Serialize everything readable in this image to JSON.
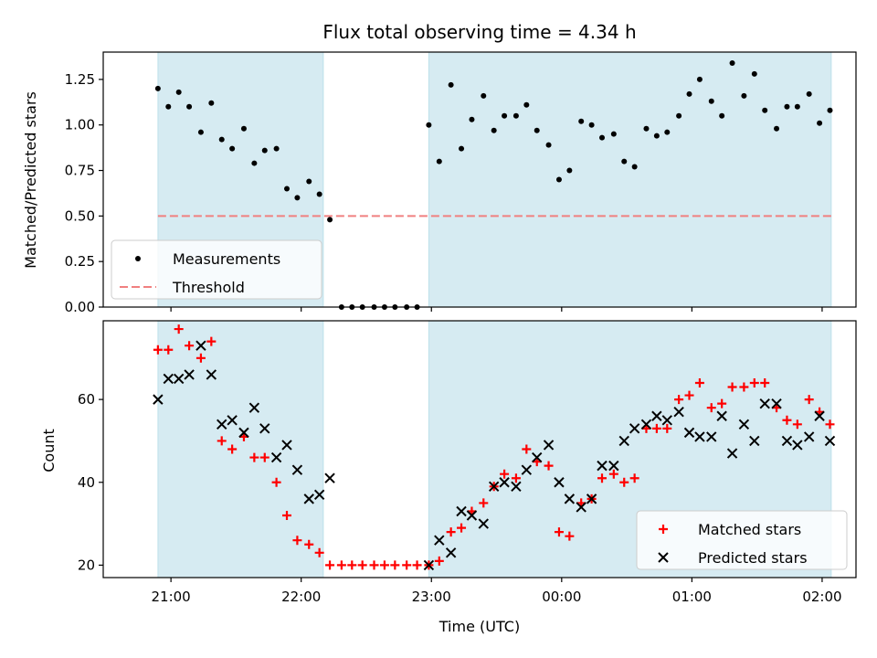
{
  "chart_data": {
    "title": "Flux total observing time = 4.34 h",
    "xlabel": "Time (UTC)",
    "x_ticks": [
      "21:00",
      "22:00",
      "23:00",
      "00:00",
      "01:00",
      "02:00"
    ],
    "x_tick_hours": [
      21,
      22,
      23,
      24,
      25,
      26
    ],
    "xlim_hours": [
      20.48,
      26.26
    ],
    "shaded_intervals_hours": [
      [
        20.9,
        22.17
      ],
      [
        22.98,
        26.07
      ]
    ],
    "colors": {
      "shade": "#add8e6",
      "measurements": "#000000",
      "threshold": "#f08080",
      "matched": "#ff0000",
      "predicted": "#000000"
    },
    "panels": [
      {
        "type": "scatter",
        "ylabel": "Matched/Predicted stars",
        "ylim": [
          0,
          1.4
        ],
        "y_ticks": [
          "0.00",
          "0.25",
          "0.50",
          "0.75",
          "1.00",
          "1.25"
        ],
        "y_tick_values": [
          0,
          0.25,
          0.5,
          0.75,
          1.0,
          1.25
        ],
        "legend_position": "lower-left",
        "threshold": {
          "name": "Threshold",
          "value": 0.5,
          "x_range_hours": [
            20.9,
            26.07
          ]
        },
        "series": [
          {
            "name": "Measurements",
            "marker": "dot",
            "points": [
              [
                20.9,
                1.2
              ],
              [
                20.98,
                1.1
              ],
              [
                21.06,
                1.18
              ],
              [
                21.14,
                1.1
              ],
              [
                21.23,
                0.96
              ],
              [
                21.31,
                1.12
              ],
              [
                21.39,
                0.92
              ],
              [
                21.47,
                0.87
              ],
              [
                21.56,
                0.98
              ],
              [
                21.64,
                0.79
              ],
              [
                21.72,
                0.86
              ],
              [
                21.81,
                0.87
              ],
              [
                21.89,
                0.65
              ],
              [
                21.97,
                0.6
              ],
              [
                22.06,
                0.69
              ],
              [
                22.14,
                0.62
              ],
              [
                22.22,
                0.48
              ],
              [
                22.31,
                0.0
              ],
              [
                22.39,
                0.0
              ],
              [
                22.47,
                0.0
              ],
              [
                22.56,
                0.0
              ],
              [
                22.64,
                0.0
              ],
              [
                22.72,
                0.0
              ],
              [
                22.81,
                0.0
              ],
              [
                22.89,
                0.0
              ],
              [
                22.98,
                1.0
              ],
              [
                23.06,
                0.8
              ],
              [
                23.15,
                1.22
              ],
              [
                23.23,
                0.87
              ],
              [
                23.31,
                1.03
              ],
              [
                23.4,
                1.16
              ],
              [
                23.48,
                0.97
              ],
              [
                23.56,
                1.05
              ],
              [
                23.65,
                1.05
              ],
              [
                23.73,
                1.11
              ],
              [
                23.81,
                0.97
              ],
              [
                23.9,
                0.89
              ],
              [
                23.98,
                0.7
              ],
              [
                24.06,
                0.75
              ],
              [
                24.15,
                1.02
              ],
              [
                24.23,
                1.0
              ],
              [
                24.31,
                0.93
              ],
              [
                24.4,
                0.95
              ],
              [
                24.48,
                0.8
              ],
              [
                24.56,
                0.77
              ],
              [
                24.65,
                0.98
              ],
              [
                24.73,
                0.94
              ],
              [
                24.81,
                0.96
              ],
              [
                24.9,
                1.05
              ],
              [
                24.98,
                1.17
              ],
              [
                25.06,
                1.25
              ],
              [
                25.15,
                1.13
              ],
              [
                25.23,
                1.05
              ],
              [
                25.31,
                1.34
              ],
              [
                25.4,
                1.16
              ],
              [
                25.48,
                1.28
              ],
              [
                25.56,
                1.08
              ],
              [
                25.65,
                0.98
              ],
              [
                25.73,
                1.1
              ],
              [
                25.81,
                1.1
              ],
              [
                25.9,
                1.17
              ],
              [
                25.98,
                1.01
              ],
              [
                26.06,
                1.08
              ]
            ]
          }
        ]
      },
      {
        "type": "scatter",
        "ylabel": "Count",
        "ylim": [
          17,
          79
        ],
        "y_ticks": [
          "20",
          "40",
          "60"
        ],
        "y_tick_values": [
          20,
          40,
          60
        ],
        "legend_position": "lower-right",
        "series": [
          {
            "name": "Matched stars",
            "marker": "plus",
            "points": [
              [
                20.9,
                72
              ],
              [
                20.98,
                72
              ],
              [
                21.06,
                77
              ],
              [
                21.14,
                73
              ],
              [
                21.23,
                70
              ],
              [
                21.31,
                74
              ],
              [
                21.39,
                50
              ],
              [
                21.47,
                48
              ],
              [
                21.56,
                51
              ],
              [
                21.64,
                46
              ],
              [
                21.72,
                46
              ],
              [
                21.81,
                40
              ],
              [
                21.89,
                32
              ],
              [
                21.97,
                26
              ],
              [
                22.06,
                25
              ],
              [
                22.14,
                23
              ],
              [
                22.22,
                20
              ],
              [
                22.31,
                20
              ],
              [
                22.39,
                20
              ],
              [
                22.47,
                20
              ],
              [
                22.56,
                20
              ],
              [
                22.64,
                20
              ],
              [
                22.72,
                20
              ],
              [
                22.81,
                20
              ],
              [
                22.89,
                20
              ],
              [
                22.98,
                20
              ],
              [
                23.06,
                21
              ],
              [
                23.15,
                28
              ],
              [
                23.23,
                29
              ],
              [
                23.31,
                33
              ],
              [
                23.4,
                35
              ],
              [
                23.48,
                39
              ],
              [
                23.56,
                42
              ],
              [
                23.65,
                41
              ],
              [
                23.73,
                48
              ],
              [
                23.81,
                45
              ],
              [
                23.9,
                44
              ],
              [
                23.98,
                28
              ],
              [
                24.06,
                27
              ],
              [
                24.15,
                35
              ],
              [
                24.23,
                36
              ],
              [
                24.31,
                41
              ],
              [
                24.4,
                42
              ],
              [
                24.48,
                40
              ],
              [
                24.56,
                41
              ],
              [
                24.65,
                53
              ],
              [
                24.73,
                53
              ],
              [
                24.81,
                53
              ],
              [
                24.9,
                60
              ],
              [
                24.98,
                61
              ],
              [
                25.06,
                64
              ],
              [
                25.15,
                58
              ],
              [
                25.23,
                59
              ],
              [
                25.31,
                63
              ],
              [
                25.4,
                63
              ],
              [
                25.48,
                64
              ],
              [
                25.56,
                64
              ],
              [
                25.65,
                58
              ],
              [
                25.73,
                55
              ],
              [
                25.81,
                54
              ],
              [
                25.9,
                60
              ],
              [
                25.98,
                57
              ],
              [
                26.06,
                54
              ]
            ]
          },
          {
            "name": "Predicted stars",
            "marker": "x",
            "points": [
              [
                20.9,
                60
              ],
              [
                20.98,
                65
              ],
              [
                21.06,
                65
              ],
              [
                21.14,
                66
              ],
              [
                21.23,
                73
              ],
              [
                21.31,
                66
              ],
              [
                21.39,
                54
              ],
              [
                21.47,
                55
              ],
              [
                21.56,
                52
              ],
              [
                21.64,
                58
              ],
              [
                21.72,
                53
              ],
              [
                21.81,
                46
              ],
              [
                21.89,
                49
              ],
              [
                21.97,
                43
              ],
              [
                22.06,
                36
              ],
              [
                22.14,
                37
              ],
              [
                22.22,
                41
              ],
              [
                22.98,
                20
              ],
              [
                23.06,
                26
              ],
              [
                23.15,
                23
              ],
              [
                23.23,
                33
              ],
              [
                23.31,
                32
              ],
              [
                23.4,
                30
              ],
              [
                23.48,
                39
              ],
              [
                23.56,
                40
              ],
              [
                23.65,
                39
              ],
              [
                23.73,
                43
              ],
              [
                23.81,
                46
              ],
              [
                23.9,
                49
              ],
              [
                23.98,
                40
              ],
              [
                24.06,
                36
              ],
              [
                24.15,
                34
              ],
              [
                24.23,
                36
              ],
              [
                24.31,
                44
              ],
              [
                24.4,
                44
              ],
              [
                24.48,
                50
              ],
              [
                24.56,
                53
              ],
              [
                24.65,
                54
              ],
              [
                24.73,
                56
              ],
              [
                24.81,
                55
              ],
              [
                24.9,
                57
              ],
              [
                24.98,
                52
              ],
              [
                25.06,
                51
              ],
              [
                25.15,
                51
              ],
              [
                25.23,
                56
              ],
              [
                25.31,
                47
              ],
              [
                25.4,
                54
              ],
              [
                25.48,
                50
              ],
              [
                25.56,
                59
              ],
              [
                25.65,
                59
              ],
              [
                25.73,
                50
              ],
              [
                25.81,
                49
              ],
              [
                25.9,
                51
              ],
              [
                25.98,
                56
              ],
              [
                26.06,
                50
              ]
            ]
          }
        ]
      }
    ]
  }
}
